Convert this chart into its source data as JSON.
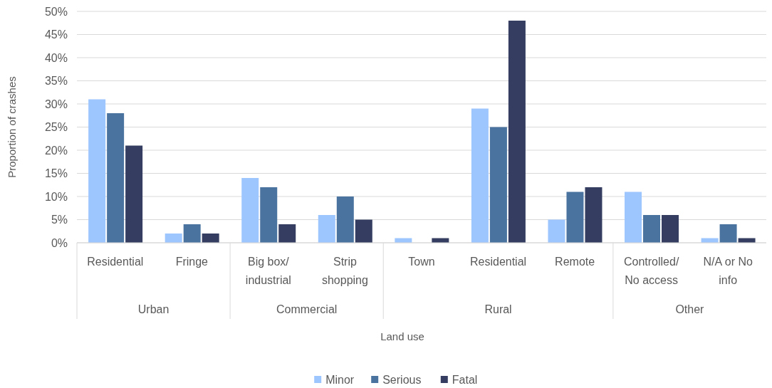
{
  "chart_data": {
    "type": "bar",
    "xlabel": "Land use",
    "ylabel": "Proportion of crashes",
    "categories": [
      "Residential",
      "Fringe",
      "Big box/ industrial",
      "Strip shopping",
      "Town",
      "Residential",
      "Remote",
      "Controlled/ No access",
      "N/A or No info"
    ],
    "series": [
      {
        "name": "Minor",
        "color": "#9dc6ff",
        "values": [
          31,
          2,
          14,
          6,
          1,
          29,
          5,
          11,
          1
        ]
      },
      {
        "name": "Serious",
        "color": "#4a739f",
        "values": [
          28,
          4,
          12,
          10,
          0,
          25,
          11,
          6,
          4
        ]
      },
      {
        "name": "Fatal",
        "color": "#353e61",
        "values": [
          21,
          2,
          4,
          5,
          1,
          48,
          12,
          6,
          1
        ]
      }
    ],
    "ylim": [
      0,
      50
    ],
    "yticks": [
      {
        "value": 0,
        "label": "0%"
      },
      {
        "value": 5,
        "label": "5%"
      },
      {
        "value": 10,
        "label": "10%"
      },
      {
        "value": 15,
        "label": "15%"
      },
      {
        "value": 20,
        "label": "20%"
      },
      {
        "value": 25,
        "label": "25%"
      },
      {
        "value": 30,
        "label": "30%"
      },
      {
        "value": 35,
        "label": "35%"
      },
      {
        "value": 40,
        "label": "40%"
      },
      {
        "value": 45,
        "label": "45%"
      },
      {
        "value": 50,
        "label": "50%"
      }
    ],
    "annotations": [
      "Urban",
      "Commercial",
      "Rural",
      "Other"
    ],
    "grid": "y",
    "legend": "bottom"
  }
}
